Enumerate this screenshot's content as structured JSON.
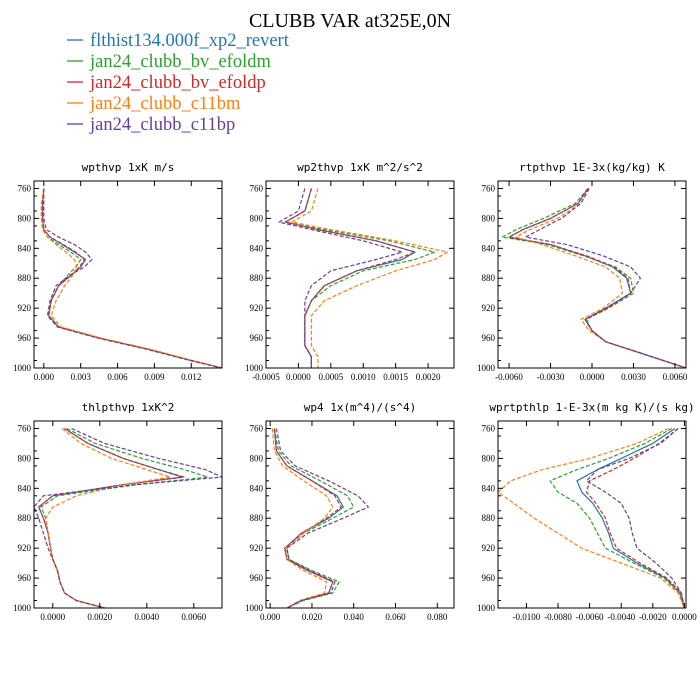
{
  "figure": {
    "title": "CLUBB VAR at325E,0N",
    "legend": [
      {
        "label": "flthist134.000f_xp2_revert",
        "color": "#1f77b4",
        "dash": "solid"
      },
      {
        "label": "jan24_clubb_bv_efoldm",
        "color": "#2ca02c",
        "dash": "dash"
      },
      {
        "label": "jan24_clubb_bv_efoldp",
        "color": "#d62728",
        "dash": "dash"
      },
      {
        "label": "jan24_clubb_c11bm",
        "color": "#ff7f0e",
        "dash": "dash"
      },
      {
        "label": "jan24_clubb_c11bp",
        "color": "#6a3d9a",
        "dash": "dash"
      }
    ]
  },
  "chart_data": [
    {
      "type": "line",
      "title": "wpthvp  1xK m/s",
      "xlim": [
        -0.0008,
        0.0145
      ],
      "ylim": [
        1000,
        750
      ],
      "xticks": [
        0.0,
        0.003,
        0.006,
        0.009,
        0.012
      ],
      "xticklabels": [
        "0.000",
        "0.003",
        "0.006",
        "0.009",
        "0.012"
      ],
      "yticks": [
        760,
        800,
        840,
        880,
        920,
        960,
        1000
      ],
      "yticklabels": [
        "760",
        "800",
        "840",
        "880",
        "920",
        "960",
        "1000"
      ],
      "y": [
        760,
        780,
        800,
        815,
        825,
        835,
        845,
        855,
        865,
        875,
        890,
        910,
        930,
        945,
        960,
        975,
        990,
        1000
      ],
      "series": [
        {
          "x": [
            0.0,
            -0.0001,
            -0.0001,
            0.0,
            0.0005,
            0.0015,
            0.0025,
            0.0034,
            0.003,
            0.0023,
            0.0012,
            0.0006,
            0.0004,
            0.0012,
            0.0045,
            0.0085,
            0.012,
            0.0145
          ]
        },
        {
          "x": [
            0.0,
            -0.0002,
            -0.0002,
            -0.0001,
            0.0003,
            0.0012,
            0.0022,
            0.003,
            0.0026,
            0.002,
            0.0012,
            0.0006,
            0.0004,
            0.0012,
            0.0045,
            0.0085,
            0.012,
            0.0145
          ]
        },
        {
          "x": [
            0.0,
            -0.0001,
            -0.0001,
            0.0,
            0.0005,
            0.0016,
            0.0026,
            0.0033,
            0.0029,
            0.0023,
            0.0012,
            0.0006,
            0.0004,
            0.0012,
            0.0045,
            0.0085,
            0.012,
            0.0145
          ]
        },
        {
          "x": [
            0.0,
            -0.0002,
            -0.0002,
            -0.0001,
            0.0003,
            0.001,
            0.0018,
            0.0025,
            0.0027,
            0.0024,
            0.0017,
            0.001,
            0.0006,
            0.0014,
            0.0047,
            0.0087,
            0.0121,
            0.0145
          ]
        },
        {
          "x": [
            0.0,
            0.0,
            0.0,
            0.0002,
            0.0012,
            0.0025,
            0.0034,
            0.0039,
            0.0033,
            0.0022,
            0.001,
            0.0005,
            0.0003,
            0.0011,
            0.0044,
            0.0084,
            0.0119,
            0.0145
          ]
        }
      ]
    },
    {
      "type": "line",
      "title": "wp2thvp  1xK m^2/s^2",
      "xlim": [
        -0.0005,
        0.0024
      ],
      "ylim": [
        1000,
        750
      ],
      "xticks": [
        -0.0005,
        0.0,
        0.0005,
        0.001,
        0.0015,
        0.002
      ],
      "xticklabels": [
        "-0.0005",
        "0.0000",
        "0.0005",
        "0.0010",
        "0.0015",
        "0.0020"
      ],
      "yticks": [
        760,
        800,
        840,
        880,
        920,
        960,
        1000
      ],
      "yticklabels": [
        "760",
        "800",
        "840",
        "880",
        "920",
        "960",
        "1000"
      ],
      "y": [
        760,
        790,
        805,
        815,
        830,
        845,
        855,
        870,
        890,
        910,
        930,
        950,
        970,
        985,
        1000
      ],
      "series": [
        {
          "x": [
            0.0002,
            0.0001,
            -0.0002,
            0.0003,
            0.0012,
            0.0018,
            0.0016,
            0.0009,
            0.0004,
            0.0002,
            0.0001,
            0.0001,
            0.0001,
            0.0002,
            0.0002
          ]
        },
        {
          "x": [
            0.0002,
            0.0001,
            -0.0002,
            0.0004,
            0.0014,
            0.0021,
            0.0018,
            0.001,
            0.0005,
            0.0002,
            0.0001,
            0.0001,
            0.0001,
            0.0002,
            0.0002
          ]
        },
        {
          "x": [
            0.0002,
            0.0001,
            -0.0002,
            0.0003,
            0.0012,
            0.0018,
            0.0015,
            0.0009,
            0.0004,
            0.0002,
            0.0001,
            0.0001,
            0.0001,
            0.0002,
            0.0002
          ]
        },
        {
          "x": [
            0.0003,
            0.0002,
            -0.0001,
            0.0005,
            0.0015,
            0.0023,
            0.0021,
            0.0015,
            0.0009,
            0.0004,
            0.0002,
            0.0002,
            0.0002,
            0.0003,
            0.0003
          ]
        },
        {
          "x": [
            0.0001,
            0.0,
            -0.0003,
            0.0002,
            0.001,
            0.0016,
            0.0012,
            0.0005,
            0.0002,
            0.0001,
            0.0001,
            0.0001,
            0.0001,
            0.0002,
            0.0002
          ]
        }
      ]
    },
    {
      "type": "line",
      "title": "rtpthvp  1E-3x(kg/kg) K",
      "xlim": [
        -0.0068,
        0.0068
      ],
      "ylim": [
        1000,
        750
      ],
      "xticks": [
        -0.006,
        -0.003,
        0.0,
        0.003,
        0.006
      ],
      "xticklabels": [
        "-0.0060",
        "-0.0030",
        "0.0000",
        "0.0030",
        "0.0060"
      ],
      "yticks": [
        760,
        800,
        840,
        880,
        920,
        960,
        1000
      ],
      "yticklabels": [
        "760",
        "800",
        "840",
        "880",
        "920",
        "960",
        "1000"
      ],
      "y": [
        760,
        780,
        800,
        815,
        825,
        835,
        850,
        865,
        880,
        900,
        920,
        935,
        950,
        965,
        980,
        1000
      ],
      "series": [
        {
          "x": [
            -0.0003,
            -0.001,
            -0.003,
            -0.005,
            -0.006,
            -0.003,
            -0.0005,
            0.0015,
            0.0025,
            0.0028,
            0.001,
            -0.0005,
            0.0,
            0.001,
            0.0035,
            0.0068
          ]
        },
        {
          "x": [
            -0.0003,
            -0.0012,
            -0.0035,
            -0.0055,
            -0.0065,
            -0.0032,
            -0.0006,
            0.0017,
            0.0028,
            0.003,
            0.0012,
            -0.0004,
            0.0,
            0.001,
            0.0035,
            0.0068
          ]
        },
        {
          "x": [
            -0.0003,
            -0.001,
            -0.003,
            -0.005,
            -0.006,
            -0.003,
            -0.0004,
            0.0016,
            0.0026,
            0.0028,
            0.0011,
            -0.0005,
            0.0,
            0.001,
            0.0035,
            0.0068
          ]
        },
        {
          "x": [
            -0.0002,
            -0.0008,
            -0.0025,
            -0.0045,
            -0.0055,
            -0.0036,
            -0.0012,
            0.001,
            0.002,
            0.0022,
            0.0008,
            -0.0008,
            -0.0002,
            0.001,
            0.0035,
            0.0068
          ]
        },
        {
          "x": [
            -0.0002,
            -0.0008,
            -0.0022,
            -0.0038,
            -0.0048,
            -0.0018,
            0.0008,
            0.0028,
            0.0035,
            0.0028,
            0.001,
            -0.0005,
            0.0,
            0.001,
            0.0035,
            0.0068
          ]
        }
      ]
    },
    {
      "type": "line",
      "title": "thlpthvp  1xK^2",
      "xlim": [
        -0.0008,
        0.0072
      ],
      "ylim": [
        1000,
        750
      ],
      "xticks": [
        0.0,
        0.002,
        0.004,
        0.006
      ],
      "xticklabels": [
        "0.0000",
        "0.0020",
        "0.0040",
        "0.0060"
      ],
      "yticks": [
        760,
        800,
        840,
        880,
        920,
        960,
        1000
      ],
      "yticklabels": [
        "760",
        "800",
        "840",
        "880",
        "920",
        "960",
        "1000"
      ],
      "y": [
        760,
        780,
        800,
        815,
        825,
        835,
        850,
        865,
        880,
        900,
        920,
        935,
        950,
        965,
        980,
        990,
        1000
      ],
      "series": [
        {
          "x": [
            0.0005,
            0.0015,
            0.003,
            0.0045,
            0.0055,
            0.003,
            0.0,
            -0.0006,
            -0.0004,
            -0.0002,
            -0.0001,
            0.0,
            0.0002,
            0.0003,
            0.0005,
            0.001,
            0.0022
          ]
        },
        {
          "x": [
            0.0006,
            0.0018,
            0.0038,
            0.0056,
            0.0066,
            0.0036,
            0.0002,
            -0.0005,
            -0.0003,
            -0.0002,
            -0.0001,
            0.0,
            0.0002,
            0.0003,
            0.0005,
            0.001,
            0.0022
          ]
        },
        {
          "x": [
            0.0005,
            0.0015,
            0.003,
            0.0045,
            0.0056,
            0.003,
            0.0,
            -0.0006,
            -0.0004,
            -0.0002,
            -0.0001,
            0.0,
            0.0002,
            0.0003,
            0.0005,
            0.001,
            0.0022
          ]
        },
        {
          "x": [
            0.0004,
            0.0012,
            0.0025,
            0.004,
            0.005,
            0.003,
            0.001,
            0.0,
            -0.0003,
            -0.0002,
            -0.0001,
            0.0,
            0.0002,
            0.0003,
            0.0005,
            0.001,
            0.0022
          ]
        },
        {
          "x": [
            0.0008,
            0.0022,
            0.0045,
            0.0065,
            0.0072,
            0.0035,
            -0.0004,
            -0.0008,
            -0.0006,
            -0.0004,
            -0.0002,
            0.0,
            0.0002,
            0.0003,
            0.0005,
            0.001,
            0.0022
          ]
        }
      ]
    },
    {
      "type": "line",
      "title": "wp4  1x(m^4)/(s^4)",
      "xlim": [
        -0.002,
        0.088
      ],
      "ylim": [
        1000,
        750
      ],
      "xticks": [
        0.0,
        0.02,
        0.04,
        0.06,
        0.08
      ],
      "xticklabels": [
        "0.000",
        "0.020",
        "0.040",
        "0.060",
        "0.080"
      ],
      "yticks": [
        760,
        800,
        840,
        880,
        920,
        960,
        1000
      ],
      "yticklabels": [
        "760",
        "800",
        "840",
        "880",
        "920",
        "960",
        "1000"
      ],
      "y": [
        760,
        790,
        810,
        830,
        850,
        865,
        880,
        900,
        920,
        935,
        950,
        965,
        980,
        990,
        1000
      ],
      "series": [
        {
          "x": [
            0.002,
            0.003,
            0.008,
            0.02,
            0.032,
            0.035,
            0.028,
            0.015,
            0.007,
            0.008,
            0.018,
            0.03,
            0.028,
            0.015,
            0.008
          ]
        },
        {
          "x": [
            0.002,
            0.004,
            0.01,
            0.024,
            0.037,
            0.04,
            0.03,
            0.016,
            0.008,
            0.009,
            0.02,
            0.033,
            0.03,
            0.016,
            0.008
          ]
        },
        {
          "x": [
            0.002,
            0.003,
            0.008,
            0.02,
            0.031,
            0.034,
            0.027,
            0.015,
            0.007,
            0.008,
            0.018,
            0.03,
            0.028,
            0.015,
            0.008
          ]
        },
        {
          "x": [
            0.001,
            0.002,
            0.006,
            0.016,
            0.027,
            0.03,
            0.026,
            0.016,
            0.008,
            0.008,
            0.016,
            0.027,
            0.026,
            0.014,
            0.008
          ]
        },
        {
          "x": [
            0.003,
            0.005,
            0.012,
            0.028,
            0.042,
            0.047,
            0.035,
            0.018,
            0.008,
            0.009,
            0.019,
            0.031,
            0.029,
            0.015,
            0.008
          ]
        }
      ]
    },
    {
      "type": "line",
      "title": "wprtpthlp  1-E-3x(m kg K)/(s kg)",
      "xlim": [
        -0.0118,
        0.0001
      ],
      "ylim": [
        1000,
        750
      ],
      "xticks": [
        -0.01,
        -0.008,
        -0.006,
        -0.004,
        -0.002,
        0.0
      ],
      "xticklabels": [
        "-0.0100",
        "-0.0080",
        "-0.0060",
        "-0.0040",
        "-0.0020",
        "0.0000"
      ],
      "yticks": [
        760,
        800,
        840,
        880,
        920,
        960,
        1000
      ],
      "yticklabels": [
        "760",
        "800",
        "840",
        "880",
        "920",
        "960",
        "1000"
      ],
      "y": [
        760,
        780,
        800,
        815,
        830,
        845,
        860,
        880,
        900,
        920,
        940,
        960,
        980,
        1000
      ],
      "series": [
        {
          "x": [
            -0.0006,
            -0.002,
            -0.004,
            -0.0055,
            -0.0068,
            -0.0065,
            -0.0058,
            -0.0052,
            -0.0048,
            -0.0045,
            -0.003,
            -0.0012,
            -0.0003,
            0.0
          ]
        },
        {
          "x": [
            -0.0008,
            -0.0025,
            -0.0048,
            -0.0068,
            -0.0085,
            -0.008,
            -0.0068,
            -0.006,
            -0.0055,
            -0.005,
            -0.0032,
            -0.0013,
            -0.0003,
            0.0
          ]
        },
        {
          "x": [
            -0.0004,
            -0.0016,
            -0.0032,
            -0.0045,
            -0.006,
            -0.0062,
            -0.0056,
            -0.005,
            -0.0047,
            -0.0043,
            -0.0028,
            -0.0011,
            -0.0002,
            0.0
          ]
        },
        {
          "x": [
            -0.001,
            -0.003,
            -0.006,
            -0.009,
            -0.011,
            -0.0118,
            -0.0108,
            -0.0095,
            -0.008,
            -0.0065,
            -0.004,
            -0.0015,
            -0.0004,
            0.0
          ]
        },
        {
          "x": [
            -0.0004,
            -0.0015,
            -0.0035,
            -0.0055,
            -0.0062,
            -0.005,
            -0.004,
            -0.0035,
            -0.0033,
            -0.003,
            -0.0018,
            -0.0008,
            -0.0002,
            0.0
          ]
        }
      ]
    }
  ]
}
